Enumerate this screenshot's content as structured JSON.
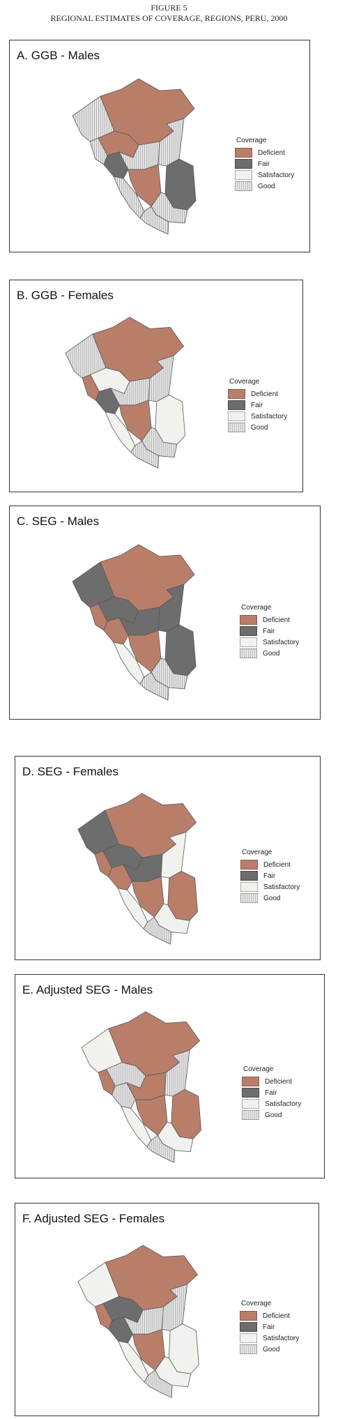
{
  "figure": {
    "number": "FIGURE 5",
    "title": "REGIONAL ESTIMATES OF COVERAGE, REGIONS, PERU, 2000"
  },
  "legend": {
    "title": "Coverage",
    "items": [
      {
        "label": "Deficient",
        "color": "#b97e6a"
      },
      {
        "label": "Fair",
        "color": "#6d6d6d"
      },
      {
        "label": "Satisfactory",
        "color": "#f1f1ee"
      },
      {
        "label": "Good",
        "color": "#d8d8d8"
      }
    ]
  },
  "panels": [
    {
      "title": "A. GGB - Males",
      "regions": {
        "north": "deficient",
        "northwest": "good",
        "coast_north": "good",
        "amazon": "deficient",
        "center_west": "fair",
        "center": "good",
        "center_east": "good",
        "south_coast": "good",
        "south_center": "deficient",
        "southeast": "fair",
        "south": "good",
        "far_south": "good"
      }
    },
    {
      "title": "B. GGB - Females",
      "regions": {
        "north": "deficient",
        "northwest": "good",
        "coast_north": "deficient",
        "amazon": "satisfactory",
        "center_west": "fair",
        "center": "good",
        "center_east": "good",
        "south_coast": "satisfactory",
        "south_center": "deficient",
        "southeast": "satisfactory",
        "south": "good",
        "far_south": "good"
      }
    },
    {
      "title": "C. SEG - Males",
      "regions": {
        "north": "deficient",
        "northwest": "fair",
        "coast_north": "deficient",
        "amazon": "fair",
        "center_west": "deficient",
        "center": "fair",
        "center_east": "fair",
        "south_coast": "satisfactory",
        "south_center": "deficient",
        "southeast": "fair",
        "south": "good",
        "far_south": "good"
      }
    },
    {
      "title": "D. SEG - Females",
      "regions": {
        "north": "deficient",
        "northwest": "fair",
        "coast_north": "deficient",
        "amazon": "fair",
        "center_west": "deficient",
        "center": "fair",
        "center_east": "satisfactory",
        "south_coast": "satisfactory",
        "south_center": "deficient",
        "southeast": "deficient",
        "south": "satisfactory",
        "far_south": "good"
      }
    },
    {
      "title": "E. Adjusted SEG - Males",
      "regions": {
        "north": "deficient",
        "northwest": "satisfactory",
        "coast_north": "deficient",
        "amazon": "good",
        "center_west": "good",
        "center": "deficient",
        "center_east": "good",
        "south_coast": "satisfactory",
        "south_center": "deficient",
        "southeast": "deficient",
        "south": "satisfactory",
        "far_south": "good"
      }
    },
    {
      "title": "F. Adjusted SEG - Females",
      "regions": {
        "north": "deficient",
        "northwest": "satisfactory",
        "coast_north": "deficient",
        "amazon": "fair",
        "center_west": "fair",
        "center": "good",
        "center_east": "good",
        "south_coast": "satisfactory",
        "south_center": "deficient",
        "southeast": "satisfactory",
        "south": "satisfactory",
        "far_south": "good"
      }
    }
  ]
}
